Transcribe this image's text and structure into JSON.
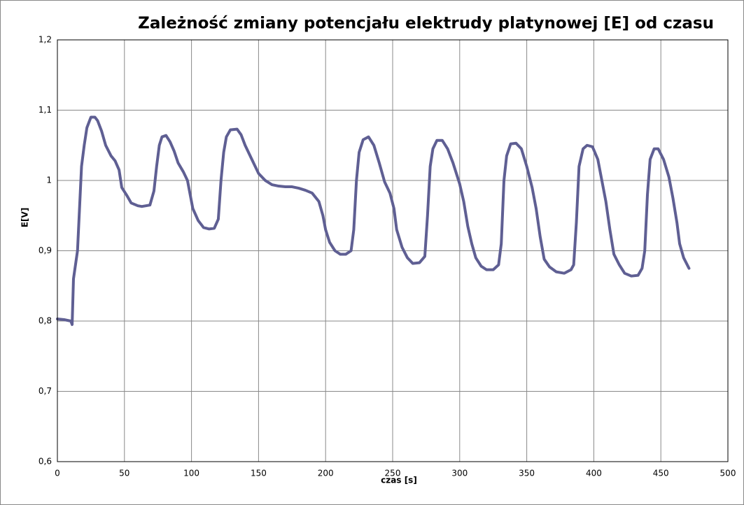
{
  "chart_data": {
    "type": "line",
    "title": "Zależność zmiany potencjału elektrudy platynowej [E]  od czasu",
    "x_label": "czas [s]",
    "y_label": "E[V]",
    "color": "#5f5f93",
    "grid": true,
    "xlim": [
      0,
      500
    ],
    "xticks": [
      0,
      50,
      100,
      150,
      200,
      250,
      300,
      350,
      400,
      450,
      500
    ],
    "ylim": [
      0.6,
      1.2
    ],
    "yticks": [
      {
        "value": 0.6,
        "label": "0,6"
      },
      {
        "value": 0.7,
        "label": "0,7"
      },
      {
        "value": 0.8,
        "label": "0,8"
      },
      {
        "value": 0.9,
        "label": "0,9"
      },
      1,
      {
        "value": 1.1,
        "label": "1,1"
      },
      {
        "value": 1.2,
        "label": "1,2"
      }
    ],
    "x": [
      0,
      5,
      10,
      11,
      12,
      15,
      17,
      18,
      20,
      22,
      25,
      28,
      30,
      33,
      36,
      40,
      43,
      46,
      48,
      52,
      55,
      60,
      63,
      66,
      69,
      72,
      74,
      76,
      78,
      81,
      84,
      87,
      90,
      94,
      97,
      99,
      101,
      105,
      109,
      113,
      117,
      120,
      122,
      124,
      126,
      129,
      134,
      137,
      140,
      145,
      150,
      155,
      160,
      165,
      170,
      175,
      180,
      185,
      190,
      195,
      198,
      200,
      203,
      207,
      211,
      215,
      219,
      221,
      223,
      225,
      228,
      232,
      236,
      240,
      244,
      248,
      251,
      253,
      257,
      261,
      265,
      270,
      274,
      276,
      278,
      280,
      283,
      287,
      291,
      295,
      300,
      303,
      306,
      309,
      312,
      316,
      320,
      325,
      329,
      331,
      333,
      335,
      338,
      342,
      346,
      350,
      354,
      357,
      360,
      363,
      367,
      372,
      378,
      383,
      385,
      387,
      389,
      392,
      395,
      399,
      403,
      406,
      409,
      412,
      415,
      419,
      423,
      428,
      433,
      436,
      438,
      440,
      442,
      445,
      448,
      452,
      456,
      459,
      462,
      464,
      467,
      471
    ],
    "values": [
      0.803,
      0.802,
      0.8,
      0.795,
      0.86,
      0.9,
      0.98,
      1.02,
      1.05,
      1.075,
      1.09,
      1.09,
      1.085,
      1.07,
      1.05,
      1.035,
      1.028,
      1.015,
      0.99,
      0.978,
      0.968,
      0.964,
      0.963,
      0.964,
      0.965,
      0.985,
      1.02,
      1.05,
      1.062,
      1.064,
      1.055,
      1.042,
      1.025,
      1.012,
      1.0,
      0.98,
      0.96,
      0.943,
      0.933,
      0.931,
      0.932,
      0.945,
      1.0,
      1.04,
      1.062,
      1.072,
      1.073,
      1.065,
      1.05,
      1.03,
      1.01,
      1.0,
      0.994,
      0.992,
      0.991,
      0.991,
      0.989,
      0.986,
      0.982,
      0.97,
      0.95,
      0.93,
      0.912,
      0.9,
      0.895,
      0.895,
      0.9,
      0.93,
      1.0,
      1.04,
      1.058,
      1.062,
      1.05,
      1.025,
      0.998,
      0.982,
      0.96,
      0.93,
      0.905,
      0.89,
      0.882,
      0.883,
      0.892,
      0.95,
      1.02,
      1.045,
      1.057,
      1.057,
      1.045,
      1.025,
      0.995,
      0.97,
      0.935,
      0.91,
      0.89,
      0.878,
      0.873,
      0.873,
      0.88,
      0.91,
      1.0,
      1.035,
      1.052,
      1.053,
      1.045,
      1.02,
      0.99,
      0.96,
      0.92,
      0.888,
      0.877,
      0.87,
      0.868,
      0.873,
      0.88,
      0.94,
      1.02,
      1.045,
      1.05,
      1.048,
      1.03,
      1.0,
      0.97,
      0.93,
      0.895,
      0.88,
      0.868,
      0.864,
      0.865,
      0.875,
      0.9,
      0.98,
      1.03,
      1.045,
      1.045,
      1.03,
      1.005,
      0.975,
      0.94,
      0.91,
      0.89,
      0.875
    ]
  }
}
